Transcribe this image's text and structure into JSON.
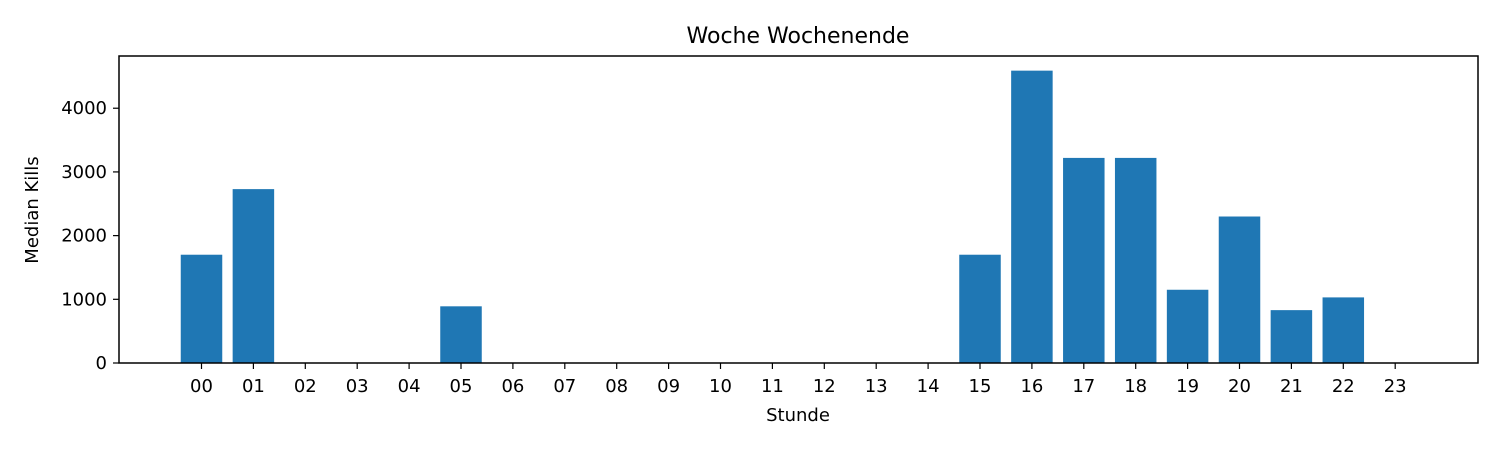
{
  "chart_data": {
    "type": "bar",
    "title": "Woche Wochenende",
    "xlabel": "Stunde",
    "ylabel": "Median Kills",
    "categories": [
      "00",
      "01",
      "02",
      "03",
      "04",
      "05",
      "06",
      "07",
      "08",
      "09",
      "10",
      "11",
      "12",
      "13",
      "14",
      "15",
      "16",
      "17",
      "18",
      "19",
      "20",
      "21",
      "22",
      "23"
    ],
    "values": [
      1700,
      2730,
      0,
      0,
      0,
      890,
      0,
      0,
      0,
      0,
      0,
      0,
      0,
      0,
      0,
      1700,
      4590,
      3220,
      3220,
      1150,
      2300,
      830,
      1030,
      0
    ],
    "yticks": [
      0,
      1000,
      2000,
      3000,
      4000
    ],
    "ylim": [
      0,
      4820
    ],
    "grid": false,
    "bar_color": "#1f77b4"
  }
}
